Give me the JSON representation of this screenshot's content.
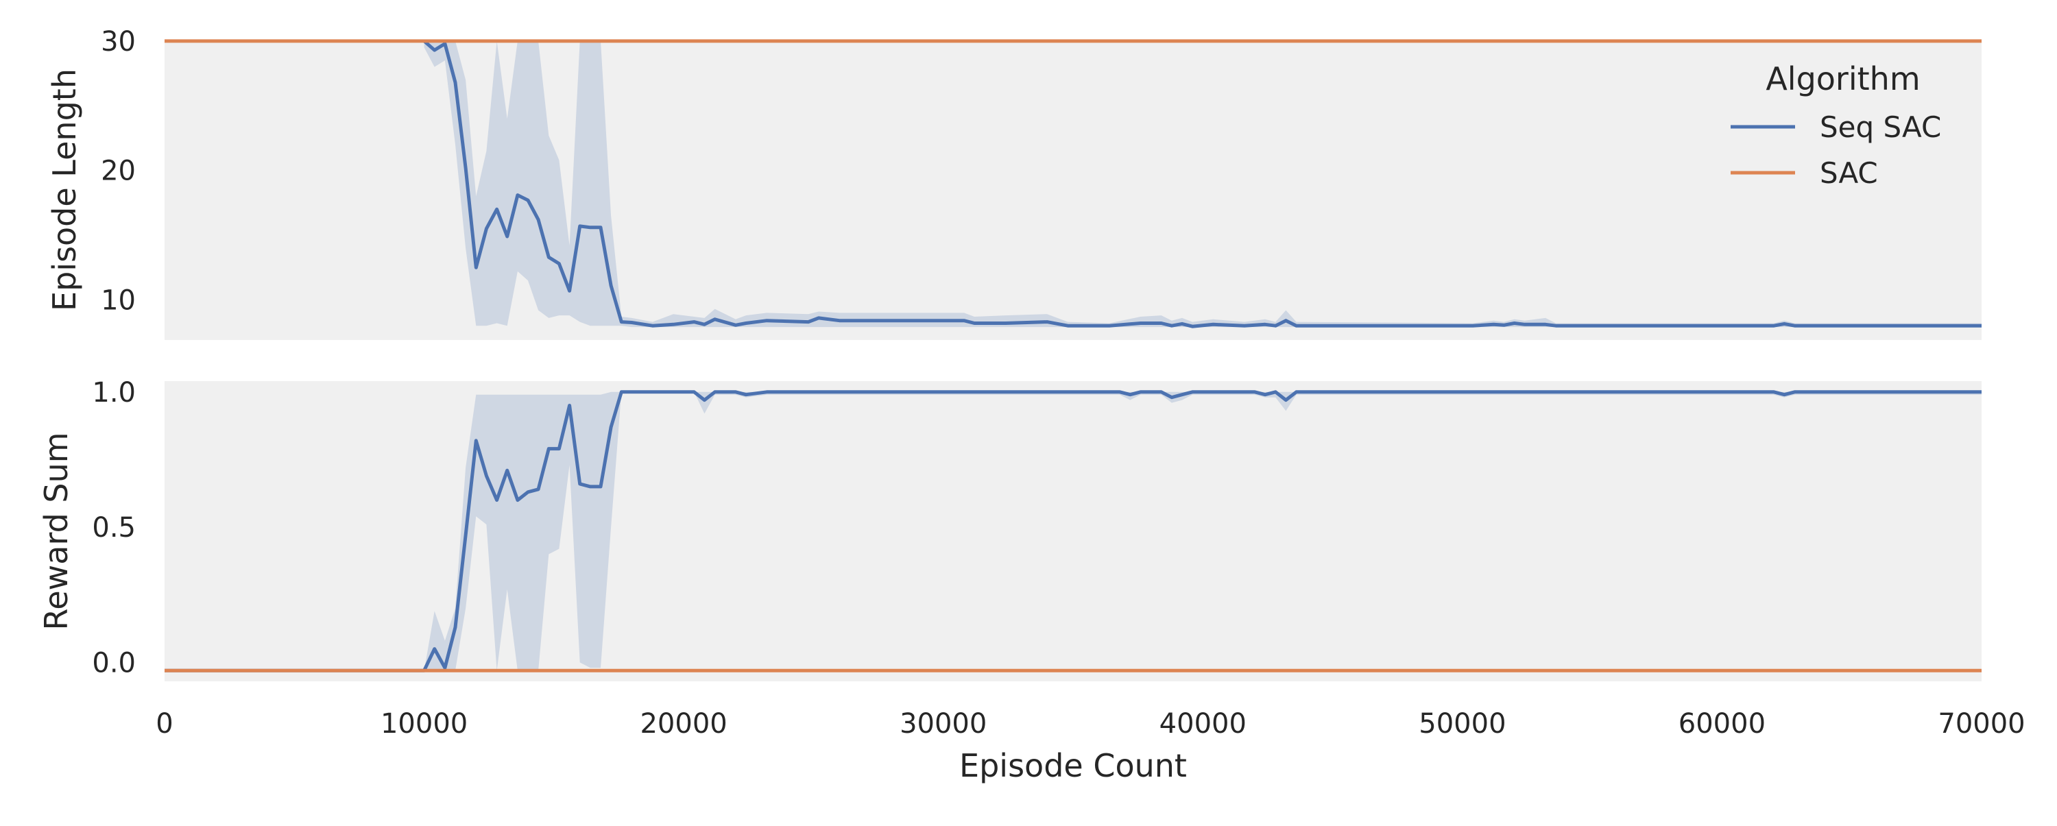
{
  "chart_data": [
    {
      "panel": "top",
      "type": "line",
      "ylabel": "Episode Length",
      "xlabel": "",
      "xlim": [
        0,
        70000
      ],
      "ylim": [
        6.9,
        30.1
      ],
      "yticks": [
        10,
        20,
        30
      ],
      "ytick_labels": [
        "10",
        "20",
        "30"
      ],
      "grid": false,
      "legend": {
        "title": "Algorithm",
        "placement": "top-right",
        "entries": [
          "Seq SAC",
          "SAC"
        ]
      },
      "series": [
        {
          "name": "Seq SAC",
          "color": "#4c72b0",
          "band_color": "#4c72b0",
          "x": [
            10000,
            10400,
            10800,
            11200,
            11600,
            12000,
            12400,
            12800,
            13200,
            13600,
            14000,
            14400,
            14800,
            15200,
            15600,
            16000,
            16400,
            16800,
            17200,
            17600,
            18000,
            18800,
            19600,
            20400,
            20800,
            21200,
            22000,
            22400,
            23200,
            24800,
            25200,
            26000,
            30800,
            31200,
            32400,
            34000,
            34800,
            36400,
            37600,
            38400,
            38800,
            39200,
            39600,
            40400,
            41600,
            42400,
            42800,
            43200,
            43600,
            50400,
            51200,
            51600,
            52000,
            52400,
            53200,
            53600,
            62000,
            62400,
            62800,
            70000
          ],
          "values": [
            30,
            29.3,
            29.8,
            26.8,
            20.2,
            12.5,
            15.5,
            17.0,
            14.9,
            18.1,
            17.7,
            16.2,
            13.3,
            12.8,
            10.7,
            15.7,
            15.6,
            15.6,
            11.1,
            8.3,
            8.25,
            8.0,
            8.1,
            8.3,
            8.1,
            8.5,
            8.05,
            8.2,
            8.4,
            8.3,
            8.6,
            8.4,
            8.4,
            8.2,
            8.2,
            8.3,
            8.0,
            8.0,
            8.2,
            8.2,
            8.0,
            8.15,
            7.95,
            8.1,
            8.0,
            8.1,
            8.0,
            8.4,
            8.0,
            8.0,
            8.1,
            8.05,
            8.2,
            8.1,
            8.1,
            8.0,
            8.0,
            8.15,
            8.0,
            8.0
          ],
          "band_lower": [
            29.5,
            28.0,
            28.5,
            22.0,
            14.0,
            8.0,
            8.0,
            8.2,
            8.0,
            12.2,
            11.5,
            9.2,
            8.6,
            8.8,
            8.8,
            8.3,
            8.0,
            8.0,
            8.0,
            8.0,
            7.9,
            7.9,
            7.9,
            7.9,
            7.9,
            7.9,
            7.9,
            7.9,
            7.9,
            7.9,
            7.9,
            7.9,
            7.9,
            7.9,
            7.9,
            7.9,
            7.9,
            7.9,
            7.9,
            7.9,
            7.9,
            7.9,
            7.9,
            7.9,
            7.9,
            7.9,
            7.9,
            7.9,
            7.9,
            7.9,
            7.9,
            7.9,
            7.9,
            7.9,
            7.9,
            7.9,
            7.9,
            7.9,
            7.9,
            7.9
          ],
          "band_upper": [
            30,
            30,
            30,
            30,
            27.0,
            18.0,
            21.5,
            30,
            24.0,
            30,
            30,
            30,
            22.7,
            20.8,
            14.2,
            30,
            30,
            30,
            16.5,
            8.7,
            8.6,
            8.3,
            8.9,
            8.7,
            8.6,
            9.3,
            8.5,
            8.8,
            9.0,
            8.9,
            9.1,
            9.0,
            9.0,
            8.7,
            8.8,
            8.9,
            8.3,
            8.2,
            8.7,
            8.8,
            8.4,
            8.6,
            8.3,
            8.5,
            8.3,
            8.5,
            8.3,
            9.2,
            8.3,
            8.2,
            8.4,
            8.3,
            8.5,
            8.4,
            8.6,
            8.2,
            8.2,
            8.4,
            8.2,
            8.2
          ]
        },
        {
          "name": "SAC",
          "color": "#dd8452",
          "x": [
            0,
            70000
          ],
          "values": [
            30,
            30
          ]
        }
      ]
    },
    {
      "panel": "bottom",
      "type": "line",
      "ylabel": "Reward Sum",
      "xlabel": "Episode Count",
      "xlim": [
        0,
        70000
      ],
      "ylim": [
        -0.07,
        1.04
      ],
      "yticks": [
        0.0,
        0.5,
        1.0
      ],
      "ytick_labels": [
        "0.0",
        "0.5",
        "1.0"
      ],
      "xticks": [
        0,
        10000,
        20000,
        30000,
        40000,
        50000,
        60000,
        70000
      ],
      "xtick_labels": [
        "0",
        "10000",
        "20000",
        "30000",
        "40000",
        "50000",
        "60000",
        "70000"
      ],
      "grid": false,
      "series": [
        {
          "name": "Seq SAC",
          "color": "#4c72b0",
          "band_color": "#4c72b0",
          "x": [
            0,
            10000,
            10400,
            10800,
            11200,
            11600,
            12000,
            12400,
            12800,
            13200,
            13600,
            14000,
            14400,
            14800,
            15200,
            15600,
            16000,
            16400,
            16800,
            17200,
            17600,
            18000,
            20400,
            20800,
            21200,
            22000,
            22400,
            23200,
            36800,
            37200,
            37600,
            38400,
            38800,
            39200,
            39600,
            40400,
            42000,
            42400,
            42800,
            43200,
            43600,
            62000,
            62400,
            62800,
            70000
          ],
          "values": [
            -0.03,
            -0.03,
            0.05,
            -0.02,
            0.13,
            0.47,
            0.82,
            0.69,
            0.6,
            0.71,
            0.6,
            0.63,
            0.64,
            0.79,
            0.79,
            0.95,
            0.66,
            0.65,
            0.65,
            0.87,
            1.0,
            1.0,
            1.0,
            0.97,
            1.0,
            1.0,
            0.99,
            1.0,
            1.0,
            0.99,
            1.0,
            1.0,
            0.98,
            0.99,
            1.0,
            1.0,
            1.0,
            0.99,
            1.0,
            0.97,
            1.0,
            1.0,
            0.99,
            1.0,
            1.0
          ],
          "band_lower": [
            -0.03,
            -0.03,
            -0.03,
            -0.03,
            -0.03,
            0.2,
            0.54,
            0.51,
            -0.03,
            0.27,
            -0.03,
            -0.03,
            -0.03,
            0.4,
            0.42,
            0.73,
            0.0,
            -0.02,
            -0.02,
            0.5,
            1.0,
            1.0,
            1.0,
            0.92,
            0.99,
            0.99,
            0.98,
            0.99,
            0.99,
            0.97,
            0.99,
            0.99,
            0.96,
            0.97,
            0.99,
            0.99,
            0.99,
            0.98,
            0.98,
            0.93,
            0.99,
            0.99,
            0.98,
            0.99,
            0.99
          ],
          "band_upper": [
            -0.03,
            -0.03,
            0.19,
            0.08,
            0.2,
            0.72,
            0.99,
            0.99,
            0.99,
            0.99,
            0.99,
            0.99,
            0.99,
            0.99,
            0.99,
            0.99,
            0.99,
            0.99,
            0.99,
            1.0,
            1.0,
            1.0,
            1.0,
            1.0,
            1.0,
            1.0,
            1.0,
            1.0,
            1.0,
            1.0,
            1.0,
            1.0,
            1.0,
            1.0,
            1.0,
            1.0,
            1.0,
            1.0,
            1.0,
            1.0,
            1.0,
            1.0,
            1.0,
            1.0,
            1.0
          ]
        },
        {
          "name": "SAC",
          "color": "#dd8452",
          "x": [
            0,
            70000
          ],
          "values": [
            -0.03,
            -0.03
          ]
        }
      ]
    }
  ]
}
